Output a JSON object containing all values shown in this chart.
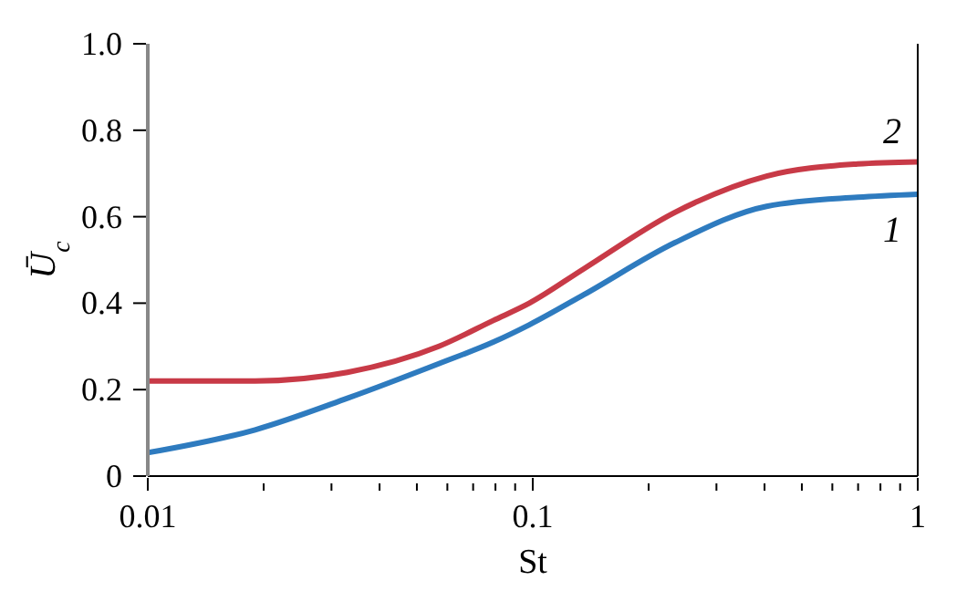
{
  "chart_data": {
    "type": "line",
    "xlabel": "St",
    "ylabel": "Ū$_{c}$",
    "x": [
      0.01,
      0.019,
      0.033,
      0.057,
      0.079,
      0.098,
      0.136,
      0.234,
      0.405,
      0.698,
      1
    ],
    "series": [
      {
        "name": "1",
        "color": "#2e7bbf",
        "values": [
          0.054,
          0.107,
          0.18,
          0.26,
          0.31,
          0.35,
          0.42,
          0.54,
          0.624,
          0.645,
          0.652
        ]
      },
      {
        "name": "2",
        "color": "#c83a47",
        "values": [
          0.22,
          0.22,
          0.24,
          0.3,
          0.36,
          0.4,
          0.48,
          0.61,
          0.694,
          0.722,
          0.727
        ]
      }
    ],
    "log": "x",
    "xlim": [
      0.01,
      1
    ],
    "xticks": [
      0.01,
      {
        "value": 0.02,
        "label": null
      },
      {
        "value": 0.03,
        "label": null
      },
      {
        "value": 0.04,
        "label": null
      },
      {
        "value": 0.05,
        "label": null
      },
      {
        "value": 0.06,
        "label": null
      },
      {
        "value": 0.07,
        "label": null
      },
      {
        "value": 0.08,
        "label": null
      },
      {
        "value": 0.09,
        "label": null
      },
      0.1,
      {
        "value": 0.2,
        "label": null
      },
      {
        "value": 0.3,
        "label": null
      },
      {
        "value": 0.4,
        "label": null
      },
      {
        "value": 0.5,
        "label": null
      },
      {
        "value": 0.6,
        "label": null
      },
      {
        "value": 0.7,
        "label": null
      },
      {
        "value": 0.8,
        "label": null
      },
      {
        "value": 0.9,
        "label": null
      },
      1
    ],
    "ylim": [
      0,
      1
    ],
    "yticks": [
      0,
      {
        "value": 0.2,
        "label": "0.2"
      },
      {
        "value": 0.4,
        "label": "0.4"
      },
      {
        "value": 0.6,
        "label": "0.6"
      },
      {
        "value": 0.8,
        "label": "0.8"
      },
      {
        "value": 1,
        "label": "1.0"
      }
    ],
    "marker": "none",
    "line_style": "solid"
  }
}
